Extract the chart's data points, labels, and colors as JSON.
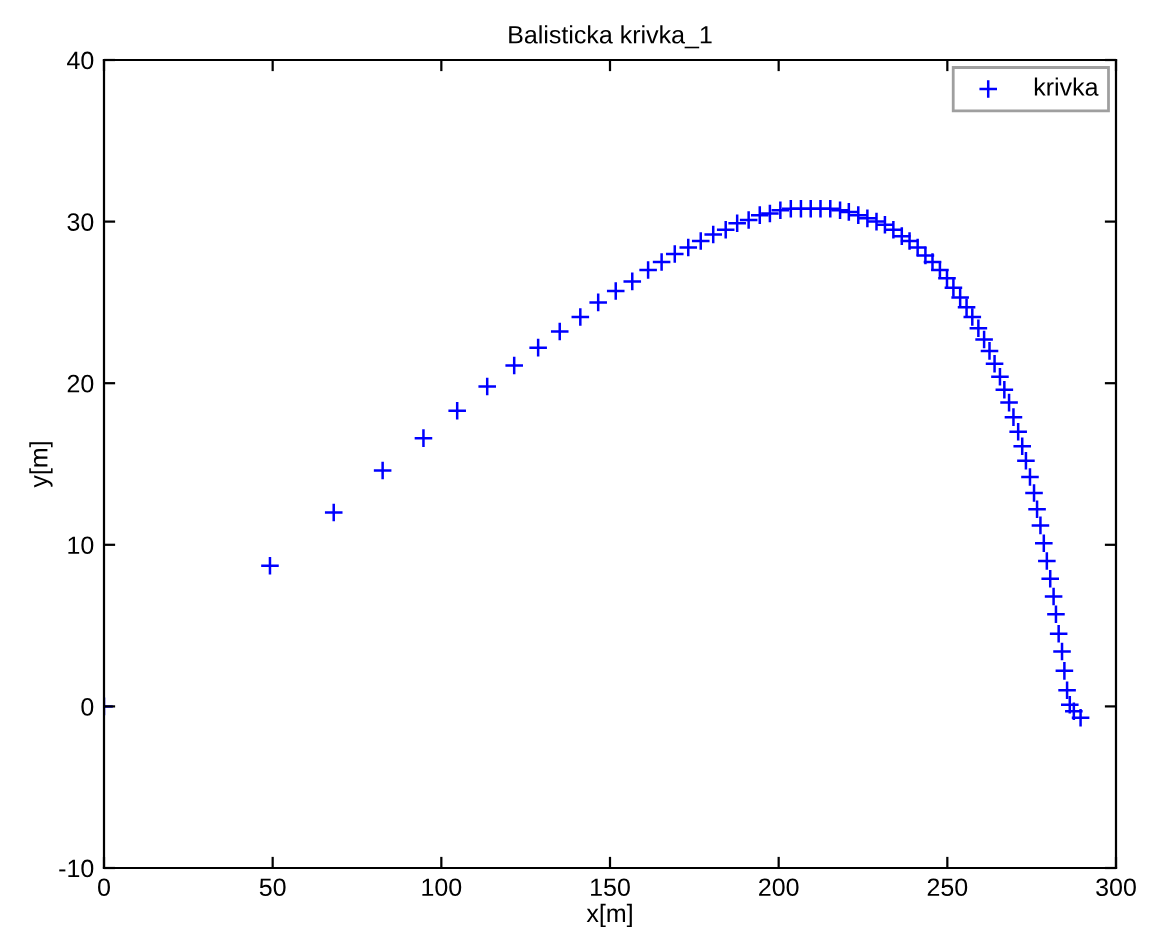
{
  "chart_data": {
    "type": "scatter",
    "title": "Balisticka krivka_1",
    "xlabel": "x[m]",
    "ylabel": "y[m]",
    "xlim": [
      0,
      300
    ],
    "ylim": [
      -10,
      40
    ],
    "xticks": [
      0,
      50,
      100,
      150,
      200,
      250,
      300
    ],
    "yticks": [
      -10,
      0,
      10,
      20,
      30,
      40
    ],
    "grid": false,
    "legend": "top right",
    "marker": "cross",
    "series": [
      {
        "name": "krivka",
        "color": "#0000ff",
        "x": [
          0,
          49.2,
          68.1,
          82.6,
          94.7,
          104.7,
          113.6,
          121.6,
          128.7,
          135.1,
          141.2,
          146.5,
          151.7,
          156.6,
          161.3,
          165.3,
          169.2,
          173.2,
          176.9,
          180.6,
          184.3,
          187.7,
          191.1,
          194.4,
          197.4,
          200.5,
          203.6,
          206.6,
          209.5,
          212.4,
          215.3,
          218.2,
          220.8,
          223.6,
          226.3,
          229.0,
          231.5,
          234.0,
          236.5,
          238.8,
          241.2,
          243.5,
          245.6,
          247.8,
          249.9,
          251.8,
          253.8,
          255.7,
          257.4,
          259.2,
          260.9,
          262.5,
          264.0,
          265.6,
          266.9,
          268.3,
          269.6,
          271.0,
          272.2,
          273.3,
          274.5,
          275.7,
          276.6,
          277.6,
          278.6,
          279.5,
          280.5,
          281.5,
          282.2,
          283.0,
          284.0,
          284.7,
          285.5,
          286.3,
          287.5,
          289.5
        ],
        "values": [
          0,
          8.7,
          12.0,
          14.6,
          16.6,
          18.3,
          19.8,
          21.1,
          22.2,
          23.2,
          24.1,
          25.0,
          25.7,
          26.3,
          27.0,
          27.5,
          28.0,
          28.4,
          28.8,
          29.2,
          29.5,
          29.9,
          30.1,
          30.4,
          30.5,
          30.7,
          30.8,
          30.8,
          30.8,
          30.8,
          30.8,
          30.7,
          30.6,
          30.4,
          30.2,
          30.0,
          29.8,
          29.5,
          29.1,
          28.8,
          28.4,
          27.9,
          27.5,
          27.0,
          26.5,
          25.9,
          25.3,
          24.7,
          24.1,
          23.4,
          22.7,
          22.0,
          21.2,
          20.4,
          19.6,
          18.8,
          17.9,
          17.0,
          16.1,
          15.2,
          14.2,
          13.2,
          12.2,
          11.2,
          10.1,
          9.0,
          7.9,
          6.8,
          5.7,
          4.5,
          3.4,
          2.2,
          1.0,
          0.1,
          -0.3,
          -0.7
        ]
      }
    ]
  }
}
